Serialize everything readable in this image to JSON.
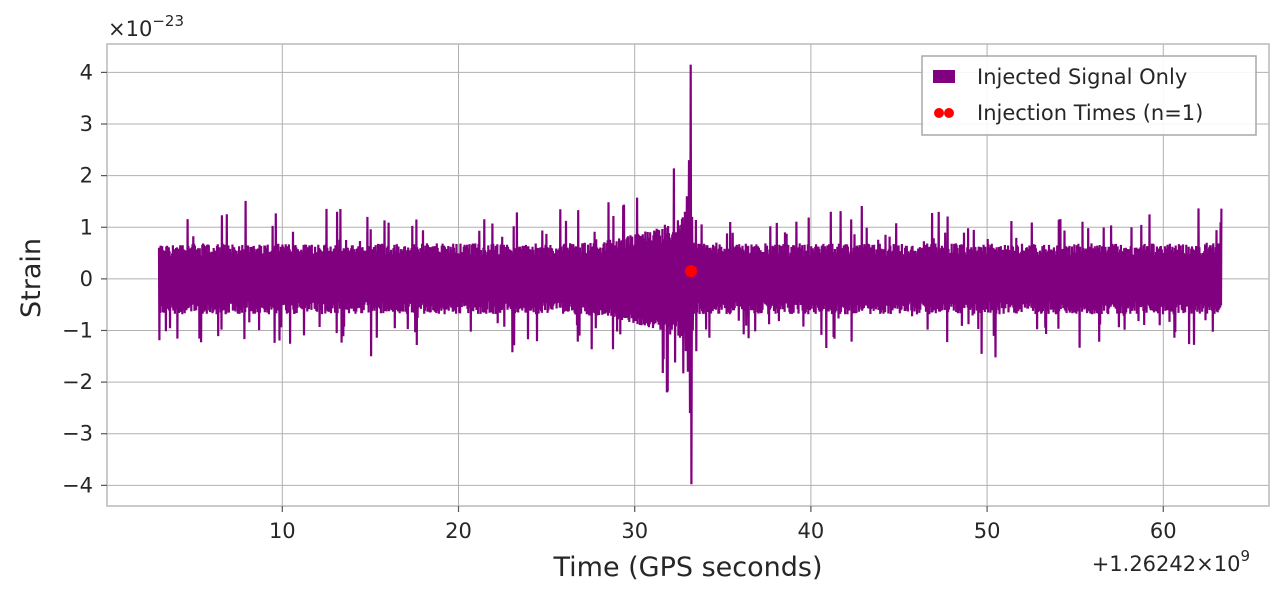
{
  "chart_data": {
    "type": "line",
    "xlabel": "Time (GPS seconds)",
    "ylabel": "Strain",
    "x_offset_label": "+1.26242×10",
    "x_offset_exponent": "9",
    "y_scale_label": "×10",
    "y_scale_exponent": "−23",
    "xlim": [
      0.05,
      66.0
    ],
    "ylim": [
      -4.4,
      4.55
    ],
    "x_ticks": [
      10,
      20,
      30,
      40,
      50,
      60
    ],
    "x_tick_labels": [
      "10",
      "20",
      "30",
      "40",
      "50",
      "60"
    ],
    "y_ticks": [
      -4,
      -3,
      -2,
      -1,
      0,
      1,
      2,
      3,
      4
    ],
    "y_tick_labels": [
      "−4",
      "−3",
      "−2",
      "−1",
      "0",
      "1",
      "2",
      "3",
      "4"
    ],
    "grid": true,
    "legend_position": "top-right",
    "series": [
      {
        "name": "Injected Signal Only",
        "kind": "line",
        "color": "#800080",
        "x_start": 3.0,
        "x_end": 63.3,
        "baseline_amplitude": 0.55,
        "peak_x": 33.2,
        "peak_max": 4.15,
        "peak_min": -3.98
      },
      {
        "name": "Injection Times (n=1)",
        "kind": "scatter",
        "color": "#ff0000",
        "x": [
          33.2
        ],
        "y": [
          0.15
        ]
      }
    ]
  }
}
